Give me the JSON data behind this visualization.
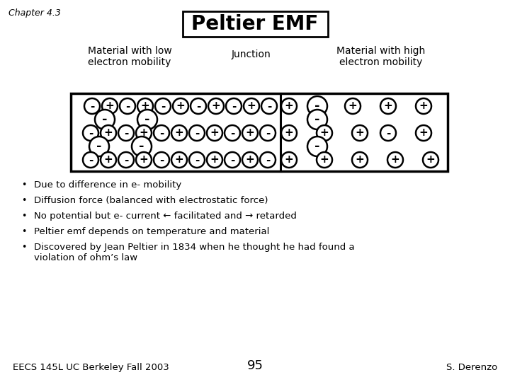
{
  "title": "Peltier EMF",
  "chapter": "Chapter 4.3",
  "footer_left": "EECS 145L UC Berkeley Fall 2003",
  "footer_center": "95",
  "footer_right": "S. Derenzo",
  "label_low": "Material with low\nelectron mobility",
  "label_junction": "Junction",
  "label_high": "Material with high\nelectron mobility",
  "bullets": [
    "Due to difference in e- mobility",
    "Diffusion force (balanced with electrostatic force)",
    "No potential but e- current ← facilitated and → retarded",
    "Peltier emf depends on temperature and material",
    "Discovered by Jean Peltier in 1834 when he thought he had found a\nviolation of ohm’s law"
  ],
  "bg_color": "#ffffff",
  "text_color": "#000000",
  "left_ions": [
    [
      130,
      390,
      "-",
      11
    ],
    [
      155,
      390,
      "+",
      11
    ],
    [
      180,
      390,
      "-",
      11
    ],
    [
      205,
      390,
      "+",
      11
    ],
    [
      230,
      390,
      "-",
      11
    ],
    [
      255,
      390,
      "+",
      11
    ],
    [
      280,
      390,
      "-",
      11
    ],
    [
      305,
      390,
      "+",
      11
    ],
    [
      330,
      390,
      "-",
      11
    ],
    [
      355,
      390,
      "+",
      11
    ],
    [
      380,
      390,
      "-",
      11
    ],
    [
      148,
      371,
      "-",
      14
    ],
    [
      208,
      371,
      "-",
      14
    ],
    [
      128,
      352,
      "-",
      11
    ],
    [
      153,
      352,
      "+",
      11
    ],
    [
      178,
      352,
      "-",
      11
    ],
    [
      203,
      352,
      "+",
      11
    ],
    [
      228,
      352,
      "-",
      11
    ],
    [
      253,
      352,
      "+",
      11
    ],
    [
      278,
      352,
      "-",
      11
    ],
    [
      303,
      352,
      "+",
      11
    ],
    [
      328,
      352,
      "-",
      11
    ],
    [
      353,
      352,
      "+",
      11
    ],
    [
      378,
      352,
      "-",
      11
    ],
    [
      140,
      333,
      "-",
      14
    ],
    [
      200,
      333,
      "-",
      14
    ],
    [
      128,
      314,
      "-",
      11
    ],
    [
      153,
      314,
      "+",
      11
    ],
    [
      178,
      314,
      "-",
      11
    ],
    [
      203,
      314,
      "+",
      11
    ],
    [
      228,
      314,
      "-",
      11
    ],
    [
      253,
      314,
      "+",
      11
    ],
    [
      278,
      314,
      "-",
      11
    ],
    [
      303,
      314,
      "+",
      11
    ],
    [
      328,
      314,
      "-",
      11
    ],
    [
      353,
      314,
      "+",
      11
    ],
    [
      378,
      314,
      "-",
      11
    ]
  ],
  "right_ions": [
    [
      408,
      390,
      "+",
      11
    ],
    [
      448,
      390,
      "-",
      14
    ],
    [
      498,
      390,
      "+",
      11
    ],
    [
      548,
      390,
      "+",
      11
    ],
    [
      598,
      390,
      "+",
      11
    ],
    [
      448,
      371,
      "-",
      14
    ],
    [
      408,
      352,
      "+",
      11
    ],
    [
      458,
      352,
      "+",
      11
    ],
    [
      508,
      352,
      "+",
      11
    ],
    [
      548,
      352,
      "-",
      11
    ],
    [
      598,
      352,
      "+",
      11
    ],
    [
      448,
      333,
      "-",
      14
    ],
    [
      408,
      314,
      "+",
      11
    ],
    [
      458,
      314,
      "+",
      11
    ],
    [
      508,
      314,
      "+",
      11
    ],
    [
      558,
      314,
      "+",
      11
    ],
    [
      608,
      314,
      "+",
      11
    ]
  ]
}
